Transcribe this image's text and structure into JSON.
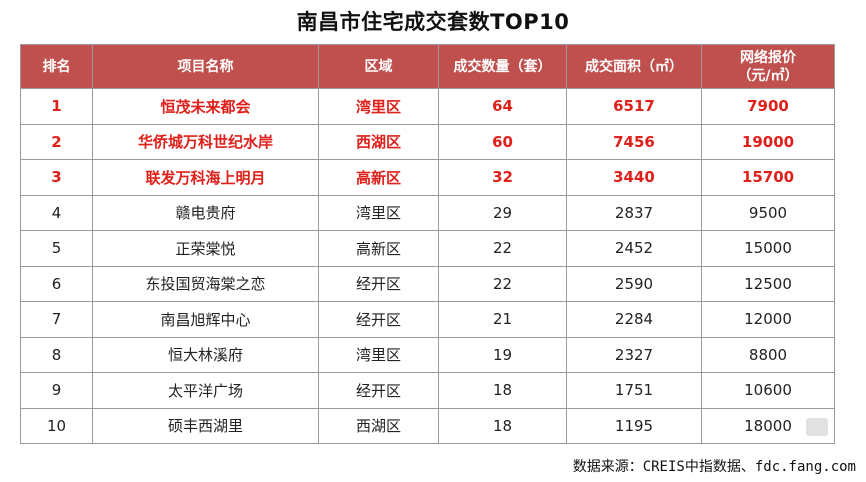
{
  "title": "南昌市住宅成交套数TOP10",
  "columns": [
    "排名",
    "项目名称",
    "区域",
    "成交数量（套）",
    "成交面积（㎡）",
    "网络报价|（元/㎡）"
  ],
  "rows": [
    {
      "rank": "1",
      "name": "恒茂未来都会",
      "district": "湾里区",
      "units": "64",
      "area": "6517",
      "price": "7900",
      "highlight": true
    },
    {
      "rank": "2",
      "name": "华侨城万科世纪水岸",
      "district": "西湖区",
      "units": "60",
      "area": "7456",
      "price": "19000",
      "highlight": true
    },
    {
      "rank": "3",
      "name": "联发万科海上明月",
      "district": "高新区",
      "units": "32",
      "area": "3440",
      "price": "15700",
      "highlight": true
    },
    {
      "rank": "4",
      "name": "赣电贵府",
      "district": "湾里区",
      "units": "29",
      "area": "2837",
      "price": "9500",
      "highlight": false
    },
    {
      "rank": "5",
      "name": "正荣棠悦",
      "district": "高新区",
      "units": "22",
      "area": "2452",
      "price": "15000",
      "highlight": false
    },
    {
      "rank": "6",
      "name": "东投国贸海棠之恋",
      "district": "经开区",
      "units": "22",
      "area": "2590",
      "price": "12500",
      "highlight": false
    },
    {
      "rank": "7",
      "name": "南昌旭辉中心",
      "district": "经开区",
      "units": "21",
      "area": "2284",
      "price": "12000",
      "highlight": false
    },
    {
      "rank": "8",
      "name": "恒大林溪府",
      "district": "湾里区",
      "units": "19",
      "area": "2327",
      "price": "8800",
      "highlight": false
    },
    {
      "rank": "9",
      "name": "太平洋广场",
      "district": "经开区",
      "units": "18",
      "area": "1751",
      "price": "10600",
      "highlight": false
    },
    {
      "rank": "10",
      "name": "硕丰西湖里",
      "district": "西湖区",
      "units": "18",
      "area": "1195",
      "price": "18000",
      "highlight": false
    }
  ],
  "source": "数据来源：CREIS中指数据、fdc.fang.com",
  "colors": {
    "header_bg": "#c0504d",
    "highlight_text": "#e0201a"
  }
}
